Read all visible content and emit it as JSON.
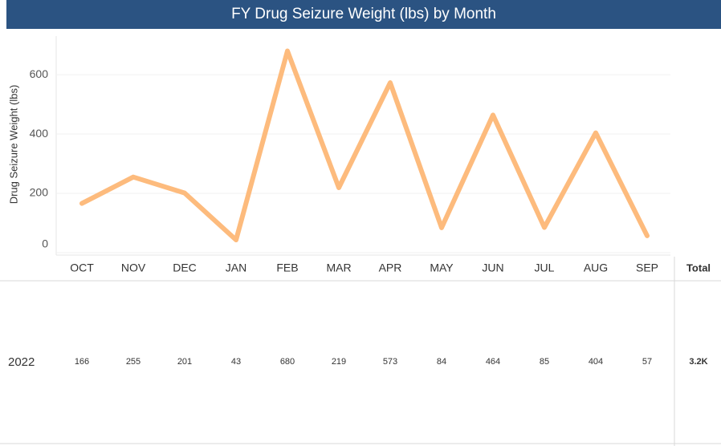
{
  "chart_data": {
    "type": "line",
    "title": "FY Drug Seizure Weight (lbs) by Month",
    "y_label": "Drug Seizure Weight (lbs)",
    "categories": [
      "OCT",
      "NOV",
      "DEC",
      "JAN",
      "FEB",
      "MAR",
      "APR",
      "MAY",
      "JUN",
      "JUL",
      "AUG",
      "SEP"
    ],
    "values": [
      166,
      255,
      201,
      43,
      680,
      219,
      573,
      84,
      464,
      85,
      404,
      57
    ],
    "color": "#fdbb7d",
    "ylim": [
      0,
      730
    ],
    "yticks": [
      0,
      200,
      400,
      600
    ],
    "grid": true,
    "total_header": "Total",
    "row_label": "2022",
    "total": "3.2K"
  }
}
